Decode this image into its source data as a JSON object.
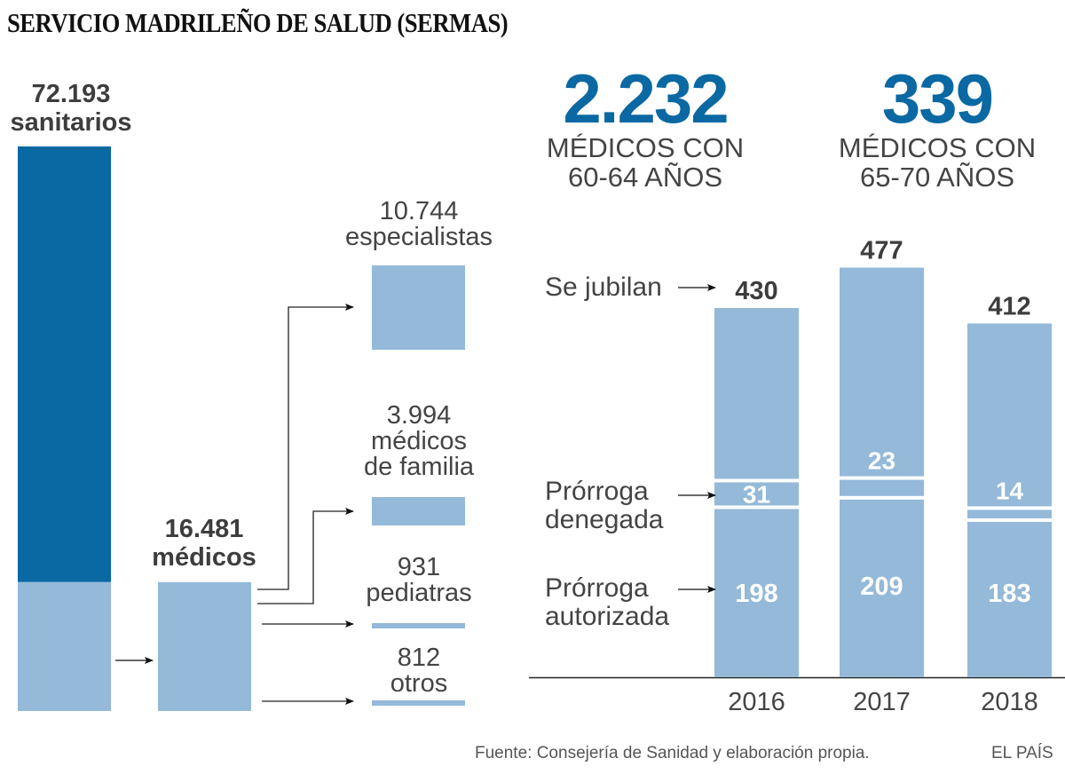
{
  "title": "SERVICIO MADRILEÑO DE SALUD (SERMAS)",
  "colors": {
    "dark_blue": "#0a68a2",
    "light_blue": "#94b9d9",
    "text_dark": "#3d3d3d",
    "text_light": "#444444",
    "separator": "#ffffff"
  },
  "left_panel": {
    "sanitarios": {
      "value": "72.193",
      "label": "sanitarios",
      "total": 72193,
      "medicos_share": 16481
    },
    "medicos": {
      "value": "16.481",
      "label": "médicos",
      "total": 16481
    },
    "breakdown": [
      {
        "value": "10.744",
        "label_lines": [
          "especialistas"
        ],
        "count": 10744
      },
      {
        "value": "3.994",
        "label_lines": [
          "médicos",
          "de familia"
        ],
        "count": 3994
      },
      {
        "value": "931",
        "label_lines": [
          "pediatras"
        ],
        "count": 931
      },
      {
        "value": "812",
        "label_lines": [
          "otros"
        ],
        "count": 812
      }
    ]
  },
  "highlights": [
    {
      "value": "2.232",
      "line1": "MÉDICOS CON",
      "line2": "60-64 AÑOS"
    },
    {
      "value": "339",
      "line1": "MÉDICOS CON",
      "line2": "65-70 AÑOS"
    }
  ],
  "annotations": {
    "se_jubilan": "Se jubilan",
    "denegada": [
      "Prórroga",
      "denegada"
    ],
    "autorizada": [
      "Prórroga",
      "autorizada"
    ]
  },
  "chart_data": {
    "type": "bar",
    "title": "",
    "xlabel": "",
    "ylabel": "",
    "categories": [
      "2016",
      "2017",
      "2018"
    ],
    "series": [
      {
        "name": "Prórroga autorizada",
        "values": [
          198,
          209,
          183
        ]
      },
      {
        "name": "Prórroga denegada",
        "values": [
          31,
          23,
          14
        ]
      },
      {
        "name": "Se jubilan (total)",
        "values": [
          430,
          477,
          412
        ]
      }
    ],
    "ylim": [
      0,
      477
    ],
    "grid": false,
    "legend": "annotations-left"
  },
  "footer": {
    "source": "Fuente: Consejería de Sanidad y elaboración propia.",
    "brand": "EL PAÍS"
  }
}
